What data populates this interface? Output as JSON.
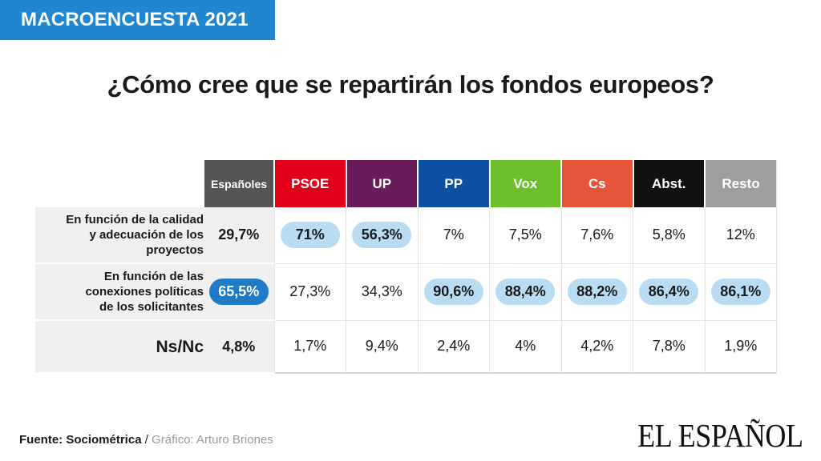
{
  "banner": "MACROENCUESTA 2021",
  "title": "¿Cómo cree que se repartirán los fondos europeos?",
  "colors": {
    "banner": "#1f86cf",
    "highlight": "#b9dcf3",
    "highlight_strong": "#1f7bc6",
    "Españoles": "#555555",
    "PSOE": "#e2001a",
    "UP": "#6a1b5c",
    "PP": "#0d4fa3",
    "Vox": "#6cbf2b",
    "Cs": "#e8543a",
    "Abst.": "#111111",
    "Resto": "#9e9e9e"
  },
  "chart_data": {
    "type": "table",
    "columns": [
      "Españoles",
      "PSOE",
      "UP",
      "PP",
      "Vox",
      "Cs",
      "Abst.",
      "Resto"
    ],
    "column_colors": [
      "#555555",
      "#e2001a",
      "#6a1b5c",
      "#0d4fa3",
      "#6cbf2b",
      "#e8543a",
      "#111111",
      "#9e9e9e"
    ],
    "rows": [
      {
        "label_lines": [
          "En función de la calidad",
          "y adecuación de los",
          "proyectos"
        ],
        "values": [
          "29,7%",
          "71%",
          "56,3%",
          "7%",
          "7,5%",
          "7,6%",
          "5,8%",
          "12%"
        ],
        "highlight": [
          false,
          true,
          true,
          false,
          false,
          false,
          false,
          false
        ],
        "big": false
      },
      {
        "label_lines": [
          "En función de las",
          "conexiones políticas",
          "de los solicitantes"
        ],
        "values": [
          "65,5%",
          "27,3%",
          "34,3%",
          "90,6%",
          "88,4%",
          "88,2%",
          "86,4%",
          "86,1%"
        ],
        "highlight": [
          true,
          false,
          false,
          true,
          true,
          true,
          true,
          true
        ],
        "big": false
      },
      {
        "label_lines": [
          "Ns/Nc"
        ],
        "values": [
          "4,8%",
          "1,7%",
          "9,4%",
          "2,4%",
          "4%",
          "4,2%",
          "7,8%",
          "1,9%"
        ],
        "highlight": [
          false,
          false,
          false,
          false,
          false,
          false,
          false,
          false
        ],
        "big": true
      }
    ]
  },
  "footer": {
    "source_label": "Fuente: Sociométrica",
    "separator": " / ",
    "credit": "Gráfico: Arturo Briones",
    "logo": "EL ESPAÑOL"
  }
}
